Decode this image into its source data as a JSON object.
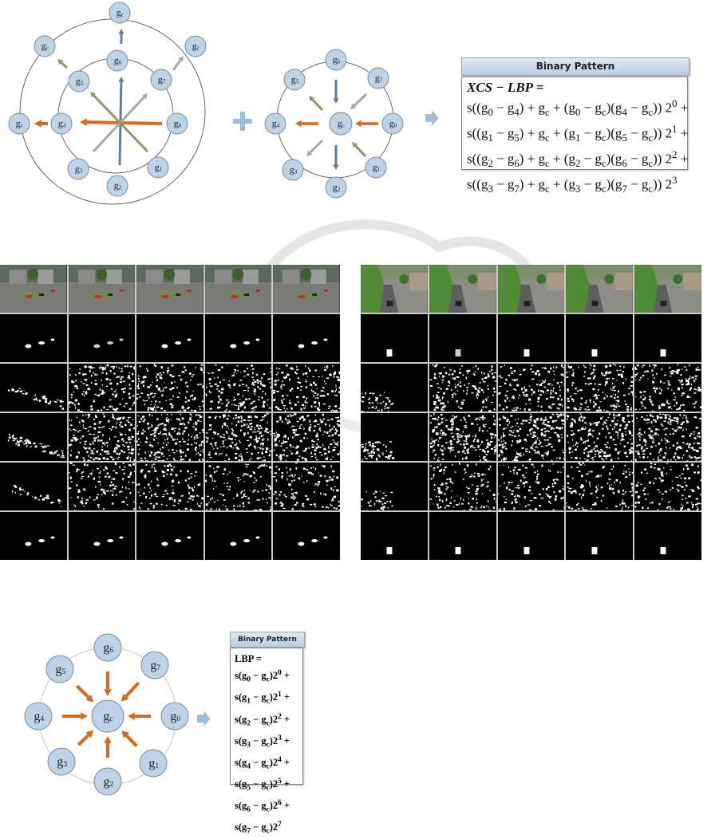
{
  "figure1": {
    "left_diagram": {
      "inner_nodes": [
        {
          "base": "g",
          "sub": "0"
        },
        {
          "base": "g",
          "sub": "1"
        },
        {
          "base": "g",
          "sub": "2"
        },
        {
          "base": "g",
          "sub": "3"
        },
        {
          "base": "g",
          "sub": "4"
        },
        {
          "base": "g",
          "sub": "5"
        },
        {
          "base": "g",
          "sub": "6"
        },
        {
          "base": "g",
          "sub": "7"
        }
      ],
      "outer_nodes": [
        {
          "base": "g",
          "sub": "c"
        },
        {
          "base": "g",
          "sub": "c"
        },
        {
          "base": "g",
          "sub": "c"
        },
        {
          "base": "g",
          "sub": "c"
        }
      ]
    },
    "plus_symbol": "+",
    "right_diagram": {
      "center_node": {
        "base": "g",
        "sub": "c"
      },
      "nodes": [
        {
          "base": "g",
          "sub": "0"
        },
        {
          "base": "g",
          "sub": "1"
        },
        {
          "base": "g",
          "sub": "2"
        },
        {
          "base": "g",
          "sub": "3"
        },
        {
          "base": "g",
          "sub": "4"
        },
        {
          "base": "g",
          "sub": "5"
        },
        {
          "base": "g",
          "sub": "6"
        },
        {
          "base": "g",
          "sub": "7"
        }
      ]
    },
    "binary_pattern": {
      "title": "Binary Pattern",
      "lines": [
        "XCS − LBP =",
        "s((g_0 − g_4) + g_c + (g_0 − g_c)(g_4 − g_c)) 2^0 +",
        "s((g_1 − g_5) + g_c + (g_1 − g_c)(g_5 − g_c)) 2^1 +",
        "s((g_2 − g_6) + g_c + (g_2 − g_c)(g_6 − g_c)) 2^2 +",
        "s((g_3 − g_7) + g_c + (g_3 − g_c)(g_7 − g_c)) 2^3"
      ]
    }
  },
  "figure2": {
    "grids": [
      {
        "scene": "roundabout",
        "rows": 6,
        "cols": 5
      },
      {
        "scene": "street",
        "rows": 6,
        "cols": 5
      }
    ]
  },
  "figure3": {
    "center_node": {
      "base": "g",
      "sub": "c"
    },
    "nodes": [
      {
        "base": "g",
        "sub": "0"
      },
      {
        "base": "g",
        "sub": "1"
      },
      {
        "base": "g",
        "sub": "2"
      },
      {
        "base": "g",
        "sub": "3"
      },
      {
        "base": "g",
        "sub": "4"
      },
      {
        "base": "g",
        "sub": "5"
      },
      {
        "base": "g",
        "sub": "6"
      },
      {
        "base": "g",
        "sub": "7"
      }
    ],
    "binary_pattern": {
      "title": "Binary Pattern",
      "lines": [
        "LBP =",
        "s(g_0 − g_c)2^0 +",
        "s(g_1 − g_c)2^1 +",
        "s(g_2 − g_c)2^2 +",
        "s(g_3 − g_c)2^3 +",
        "s(g_4 − g_c)2^4 +",
        "s(g_5 − g_c)2^5 +",
        "s(g_6 − g_c)2^6 +",
        "s(g_7 − g_c)2^7"
      ]
    }
  },
  "colors": {
    "node_fill": "#bcd3e8",
    "node_stroke": "#7f8c99",
    "orange": "#d8681c",
    "blue_gray": "#5f7d9c",
    "gray": "#a8a8a8",
    "olive": "#8a9a6a",
    "flow_arrow": "#9fbcd8"
  }
}
